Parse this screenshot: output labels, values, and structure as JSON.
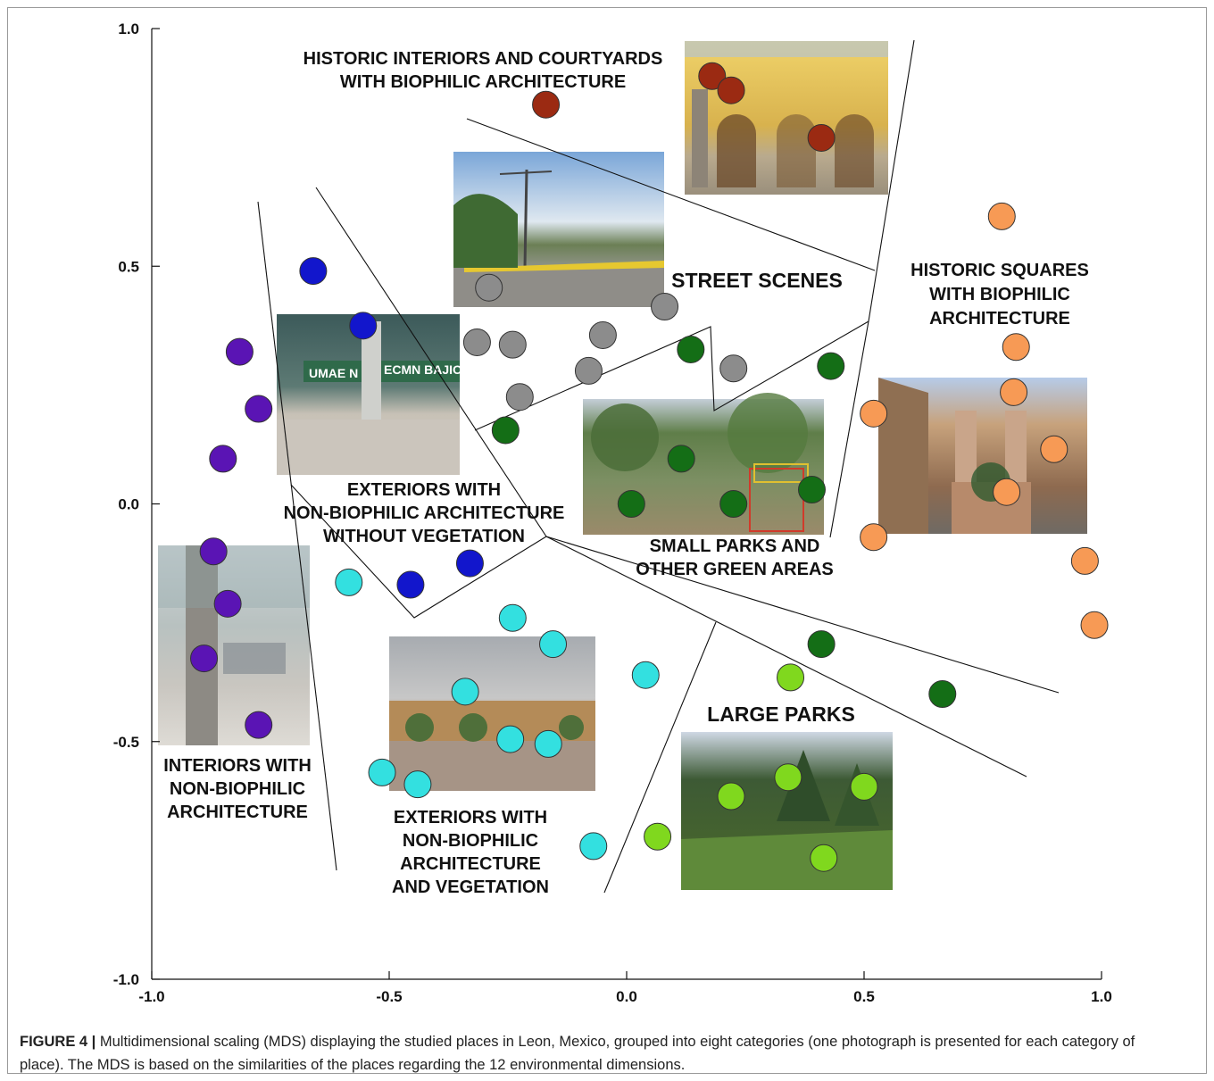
{
  "chart_data": {
    "type": "scatter",
    "title": "",
    "xlabel": "",
    "ylabel": "",
    "xlim": [
      -1.0,
      1.0
    ],
    "ylim": [
      -1.0,
      1.0
    ],
    "x_ticks": [
      "-1.0",
      "-0.5",
      "0.0",
      "0.5",
      "1.0"
    ],
    "y_ticks": [
      "1.0",
      "0.5",
      "0.0",
      "-0.5",
      "-1.0"
    ],
    "grid": false,
    "categories": [
      {
        "name": "HISTORIC INTERIORS AND COURTYARDS WITH BIOPHILIC ARCHITECTURE",
        "label_lines": [
          "HISTORIC INTERIORS AND COURTYARDS",
          "WITH BIOPHILIC ARCHITECTURE"
        ],
        "color": "#9b2a12",
        "points": [
          [
            -0.17,
            0.84
          ],
          [
            0.18,
            0.9
          ],
          [
            0.22,
            0.87
          ],
          [
            0.41,
            0.77
          ]
        ]
      },
      {
        "name": "STREET SCENES",
        "label_lines": [
          "STREET SCENES"
        ],
        "color": "#8c8c8c",
        "points": [
          [
            -0.29,
            0.455
          ],
          [
            0.08,
            0.415
          ],
          [
            -0.315,
            0.34
          ],
          [
            -0.24,
            0.335
          ],
          [
            -0.05,
            0.355
          ],
          [
            -0.08,
            0.28
          ],
          [
            0.225,
            0.285
          ],
          [
            -0.225,
            0.225
          ]
        ]
      },
      {
        "name": "HISTORIC SQUARES WITH BIOPHILIC ARCHITECTURE",
        "label_lines": [
          "HISTORIC SQUARES",
          "WITH BIOPHILIC",
          "ARCHITECTURE"
        ],
        "color": "#f79a55",
        "points": [
          [
            0.79,
            0.605
          ],
          [
            0.82,
            0.33
          ],
          [
            0.815,
            0.235
          ],
          [
            0.52,
            0.19
          ],
          [
            0.9,
            0.115
          ],
          [
            0.8,
            0.025
          ],
          [
            0.52,
            -0.07
          ],
          [
            0.965,
            -0.12
          ],
          [
            0.985,
            -0.255
          ]
        ]
      },
      {
        "name": "SMALL PARKS AND OTHER GREEN AREAS",
        "label_lines": [
          "SMALL PARKS AND",
          "OTHER GREEN AREAS"
        ],
        "color": "#146e16",
        "points": [
          [
            0.135,
            0.325
          ],
          [
            0.43,
            0.29
          ],
          [
            -0.255,
            0.155
          ],
          [
            0.115,
            0.095
          ],
          [
            0.01,
            0.0
          ],
          [
            0.225,
            0.0
          ],
          [
            0.39,
            0.03
          ],
          [
            0.41,
            -0.295
          ],
          [
            0.665,
            -0.4
          ]
        ]
      },
      {
        "name": "EXTERIORS WITH NON-BIOPHILIC ARCHITECTURE WITHOUT VEGETATION",
        "label_lines": [
          "EXTERIORS WITH",
          "NON-BIOPHILIC ARCHITECTURE",
          "WITHOUT VEGETATION"
        ],
        "color": "#1216cc",
        "points": [
          [
            -0.66,
            0.49
          ],
          [
            -0.555,
            0.375
          ],
          [
            -0.33,
            -0.125
          ],
          [
            -0.455,
            -0.17
          ]
        ]
      },
      {
        "name": "INTERIORS WITH NON-BIOPHILIC ARCHITECTURE",
        "label_lines": [
          "INTERIORS WITH",
          "NON-BIOPHILIC",
          "ARCHITECTURE"
        ],
        "color": "#5a14b4",
        "points": [
          [
            -0.815,
            0.32
          ],
          [
            -0.775,
            0.2
          ],
          [
            -0.85,
            0.095
          ],
          [
            -0.87,
            -0.1
          ],
          [
            -0.84,
            -0.21
          ],
          [
            -0.89,
            -0.325
          ],
          [
            -0.775,
            -0.465
          ]
        ]
      },
      {
        "name": "EXTERIORS WITH NON-BIOPHILIC ARCHITECTURE AND VEGETATION",
        "label_lines": [
          "EXTERIORS WITH",
          "NON-BIOPHILIC",
          "ARCHITECTURE",
          "AND VEGETATION"
        ],
        "color": "#33e0e0",
        "points": [
          [
            -0.585,
            -0.165
          ],
          [
            -0.24,
            -0.24
          ],
          [
            -0.155,
            -0.295
          ],
          [
            0.04,
            -0.36
          ],
          [
            -0.34,
            -0.395
          ],
          [
            -0.245,
            -0.495
          ],
          [
            -0.165,
            -0.505
          ],
          [
            -0.515,
            -0.565
          ],
          [
            -0.44,
            -0.59
          ],
          [
            -0.07,
            -0.72
          ]
        ]
      },
      {
        "name": "LARGE PARKS",
        "label_lines": [
          "LARGE PARKS"
        ],
        "color": "#80d81e",
        "points": [
          [
            0.345,
            -0.365
          ],
          [
            0.34,
            -0.575
          ],
          [
            0.22,
            -0.615
          ],
          [
            0.5,
            -0.595
          ],
          [
            0.065,
            -0.7
          ],
          [
            0.415,
            -0.745
          ]
        ]
      }
    ]
  },
  "caption": {
    "figure_label": "FIGURE 4 |",
    "text": "Multidimensional scaling (MDS) displaying the studied places in Leon, Mexico, grouped into eight categories (one photograph is presented for each category of place). The MDS is based on the similarities of the places regarding the 12 environmental dimensions."
  }
}
